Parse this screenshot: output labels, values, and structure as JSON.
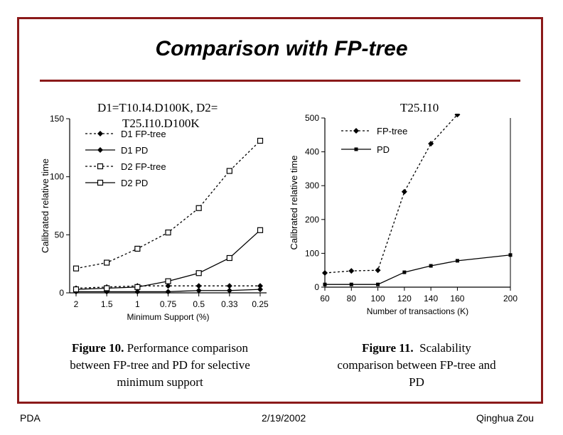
{
  "slide": {
    "title": "Comparison with FP-tree",
    "left_label_line1": "D1=T10.I4.D100K, D2=",
    "left_label_line2": "T25.I10.D100K",
    "right_label": "T25.I10",
    "caption_left": {
      "bold": "Figure 10.",
      "lines": [
        "Performance comparison",
        "between FP-tree and PD for selective",
        "minimum support"
      ]
    },
    "caption_right": {
      "bold": "Figure 11.",
      "lines": [
        "Scalability",
        "comparison between FP-tree and",
        "PD"
      ]
    }
  },
  "footer": {
    "left": "PDA",
    "center": "2/19/2002",
    "right": "Qinghua Zou"
  },
  "chart_data": [
    {
      "type": "line",
      "xlabel": "Minimum Support (%)",
      "ylabel": "Calibrated relative time",
      "categories": [
        "2",
        "1.5",
        "1",
        "0.75",
        "0.5",
        "0.33",
        "0.25"
      ],
      "ylim": [
        0,
        150
      ],
      "yticks": [
        0,
        50,
        100,
        150
      ],
      "legend_position": "top-left",
      "series": [
        {
          "name": "D1 FP-tree",
          "values": [
            4,
            5,
            6,
            6,
            6,
            6,
            6
          ],
          "dash": true,
          "marker": "diamond"
        },
        {
          "name": "D1 PD",
          "values": [
            1,
            1,
            1,
            1,
            2,
            2,
            3
          ],
          "dash": false,
          "marker": "diamond"
        },
        {
          "name": "D2 FP-tree",
          "values": [
            21,
            26,
            38,
            52,
            73,
            105,
            131
          ],
          "dash": true,
          "marker": "square-open"
        },
        {
          "name": "D2 PD",
          "values": [
            3,
            4,
            5,
            10,
            17,
            30,
            54
          ],
          "dash": false,
          "marker": "square-open"
        }
      ]
    },
    {
      "type": "line",
      "xlabel": "Number of transactions (K)",
      "ylabel": "Calibrated relative time",
      "xticks": [
        60,
        80,
        100,
        120,
        140,
        160,
        200
      ],
      "xlim": [
        60,
        200
      ],
      "ylim": [
        0,
        500
      ],
      "yticks": [
        0,
        100,
        200,
        300,
        400,
        500
      ],
      "legend_position": "top-left",
      "series": [
        {
          "name": "FP-tree",
          "x": [
            60,
            80,
            100,
            120,
            140,
            160
          ],
          "values": [
            42,
            48,
            50,
            282,
            424,
            510
          ],
          "dash": true,
          "marker": "diamond"
        },
        {
          "name": "PD",
          "x": [
            60,
            80,
            100,
            120,
            140,
            160,
            200
          ],
          "values": [
            8,
            8,
            8,
            44,
            63,
            78,
            95
          ],
          "dash": false,
          "marker": "square-filled"
        }
      ]
    }
  ]
}
